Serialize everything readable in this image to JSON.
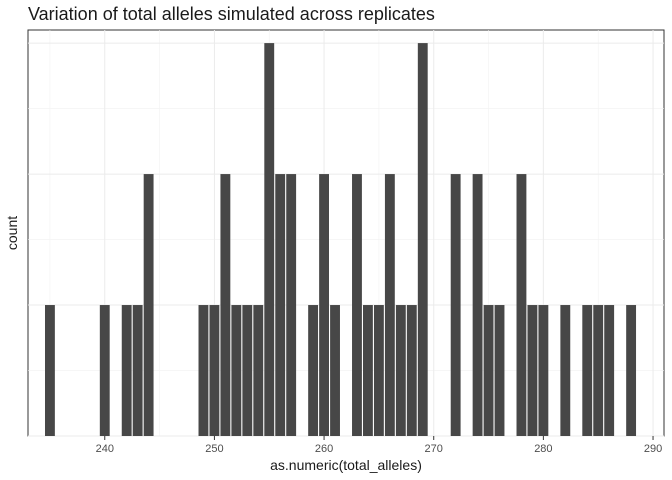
{
  "chart_data": {
    "type": "bar",
    "title": "Variation of total alleles simulated across replicates",
    "xlabel": "as.numeric(total_alleles)",
    "ylabel": "count",
    "x_ticks": [
      240,
      250,
      260,
      270,
      280,
      290
    ],
    "xlim": [
      233,
      291
    ],
    "ylim": [
      0,
      3.1
    ],
    "y_tick_labels_shown": false,
    "grid": true,
    "bar_color": "#474747",
    "x": [
      235,
      240,
      242,
      243,
      244,
      249,
      250,
      251,
      252,
      253,
      254,
      255,
      256,
      257,
      259,
      260,
      261,
      263,
      264,
      265,
      266,
      267,
      268,
      269,
      272,
      274,
      275,
      276,
      278,
      279,
      280,
      282,
      284,
      285,
      286,
      288
    ],
    "values": [
      1,
      1,
      1,
      1,
      2,
      1,
      1,
      2,
      1,
      1,
      1,
      3,
      2,
      2,
      1,
      2,
      1,
      2,
      1,
      1,
      2,
      1,
      1,
      3,
      2,
      2,
      1,
      1,
      2,
      1,
      1,
      1,
      1,
      1,
      1,
      1
    ]
  }
}
